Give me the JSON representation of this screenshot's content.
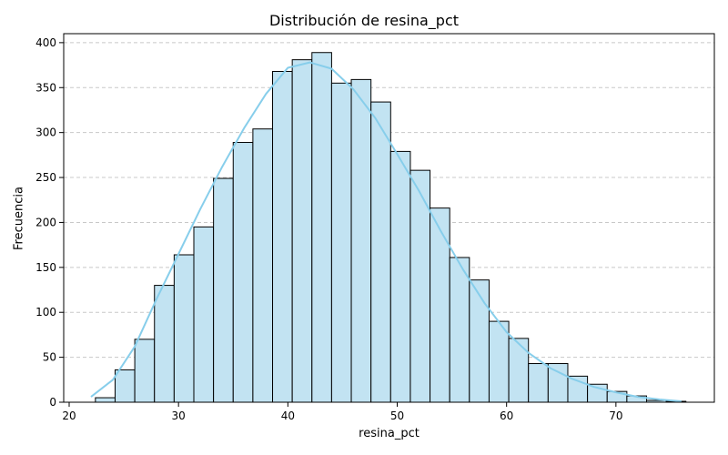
{
  "chart_data": {
    "type": "bar",
    "title": "Distribución de resina_pct",
    "xlabel": "resina_pct",
    "ylabel": "Frecuencia",
    "xlim": [
      19.5,
      79.0
    ],
    "ylim": [
      0,
      410
    ],
    "xticks": [
      20,
      30,
      40,
      50,
      60,
      70
    ],
    "yticks": [
      0,
      50,
      100,
      150,
      200,
      250,
      300,
      350,
      400
    ],
    "grid": "y-dashed",
    "bin_edges": [
      22.4,
      24.2,
      26.0,
      27.8,
      29.6,
      31.4,
      33.2,
      35.0,
      36.8,
      38.6,
      40.4,
      42.2,
      44.0,
      45.8,
      47.6,
      49.4,
      51.2,
      53.0,
      54.8,
      56.6,
      58.4,
      60.2,
      62.0,
      63.8,
      65.6,
      67.4,
      69.2,
      71.0,
      72.8,
      74.6,
      76.4
    ],
    "values": [
      5,
      36,
      70,
      130,
      164,
      195,
      249,
      289,
      304,
      368,
      381,
      389,
      355,
      359,
      334,
      279,
      258,
      216,
      161,
      136,
      90,
      71,
      43,
      43,
      29,
      20,
      12,
      7,
      2,
      1
    ],
    "kde": {
      "x": [
        22,
        24,
        26,
        28,
        30,
        32,
        34,
        36,
        38,
        40,
        42,
        44,
        46,
        48,
        50,
        52,
        54,
        56,
        58,
        60,
        62,
        64,
        66,
        68,
        70,
        72,
        74,
        76
      ],
      "y": [
        6,
        25,
        62,
        115,
        165,
        215,
        262,
        305,
        343,
        372,
        378,
        371,
        348,
        316,
        276,
        235,
        190,
        148,
        110,
        78,
        55,
        38,
        26,
        17,
        11,
        6,
        3,
        1
      ]
    },
    "colors": {
      "bar_fill": "#c2e3f2",
      "bar_edge": "#000000",
      "kde_line": "#87ceeb",
      "grid": "#c8c8c8"
    }
  }
}
